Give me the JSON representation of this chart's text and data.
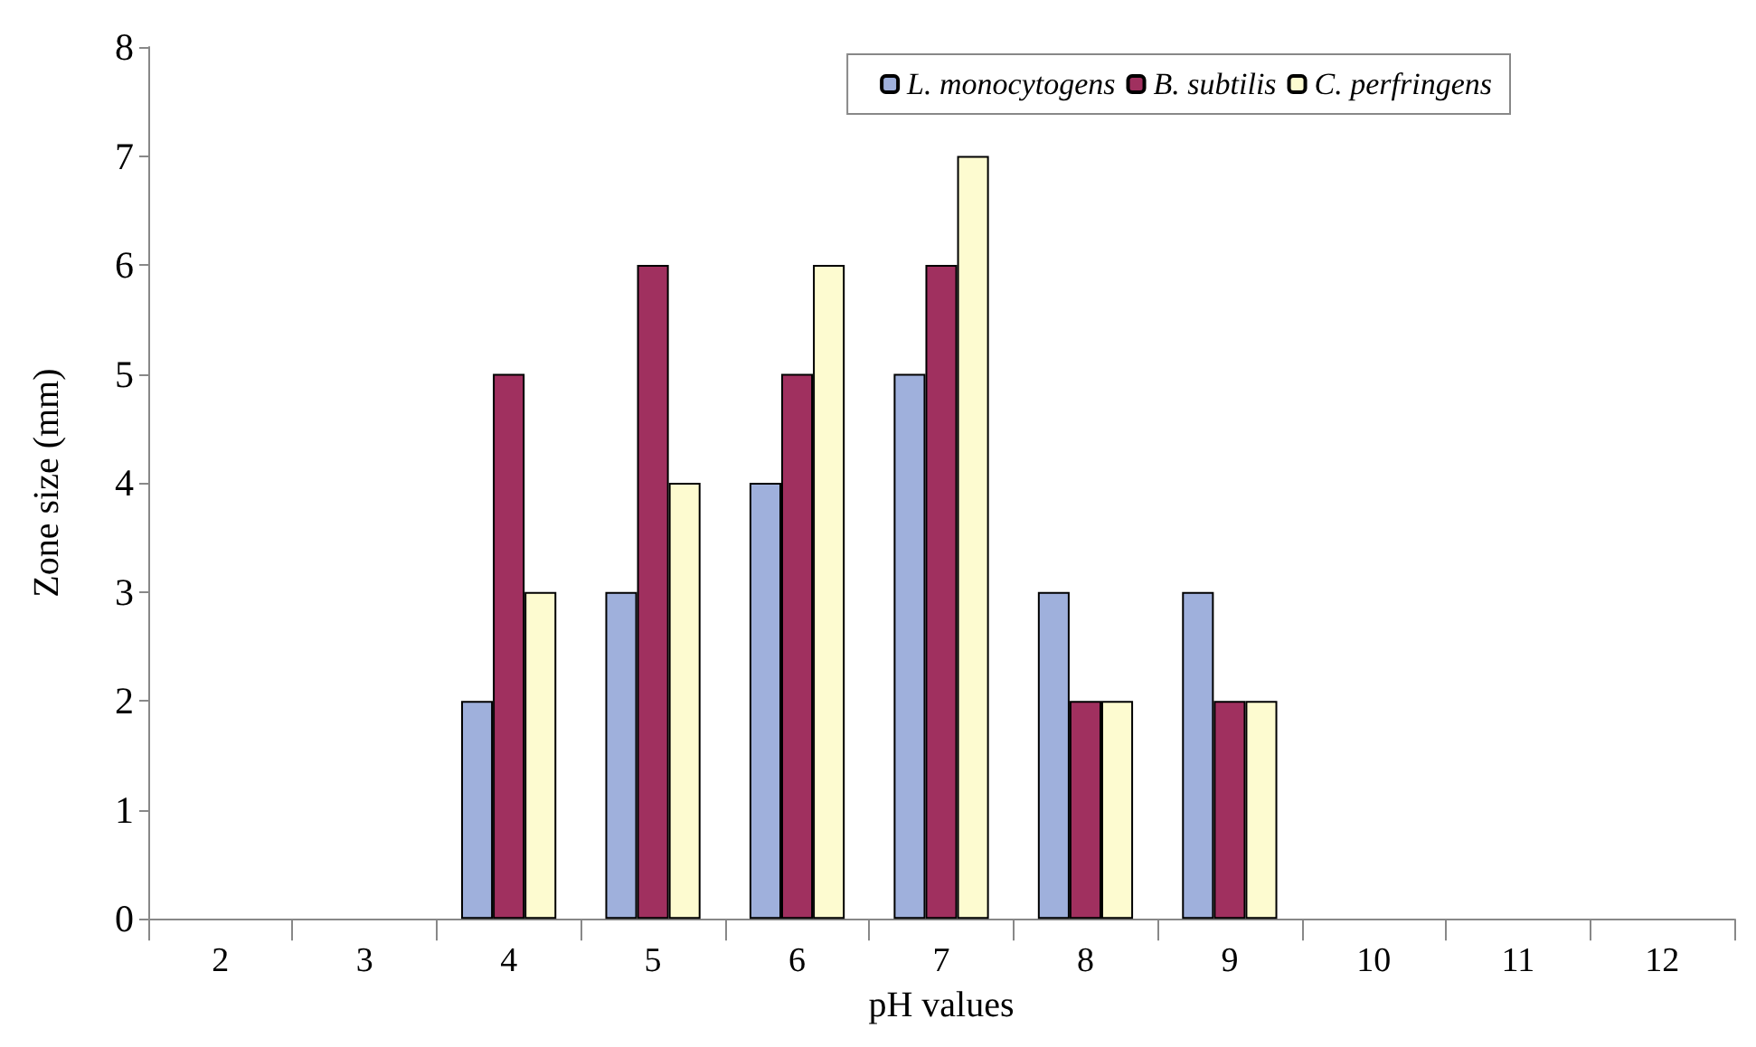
{
  "chart_data": {
    "type": "bar",
    "xlabel": "pH values",
    "ylabel": "Zone size (mm)",
    "categories": [
      "2",
      "3",
      "4",
      "5",
      "6",
      "7",
      "8",
      "9",
      "10",
      "11",
      "12"
    ],
    "series": [
      {
        "name": "L. monocytogens",
        "color": "#9fb0dc",
        "values": [
          null,
          null,
          2,
          3,
          4,
          5,
          3,
          3,
          null,
          null,
          null
        ]
      },
      {
        "name": "B. subtilis",
        "color": "#a0305f",
        "values": [
          null,
          null,
          5,
          6,
          5,
          6,
          2,
          2,
          null,
          null,
          null
        ]
      },
      {
        "name": "C. perfringens",
        "color": "#fdfbd0",
        "values": [
          null,
          null,
          3,
          4,
          6,
          7,
          2,
          2,
          null,
          null,
          null
        ]
      }
    ],
    "ylim": [
      0,
      8
    ],
    "yticks": [
      0,
      1,
      2,
      3,
      4,
      5,
      6,
      7,
      8
    ],
    "grid": false,
    "legend": "top right"
  }
}
